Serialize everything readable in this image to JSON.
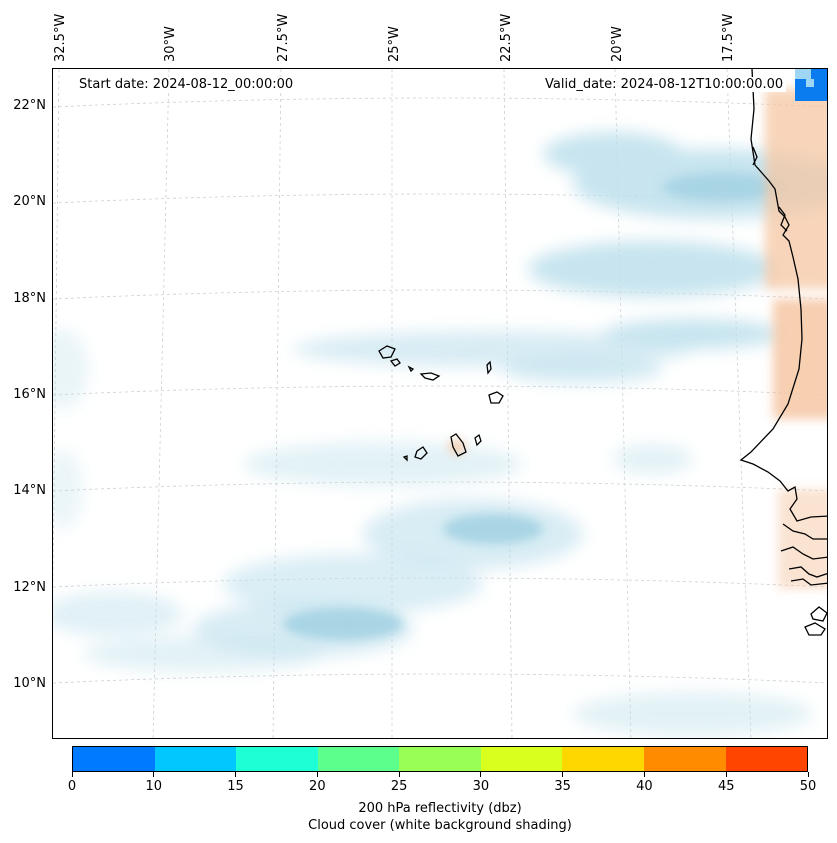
{
  "header": {
    "start_date": "Start date: 2024-08-12_00:00:00",
    "valid_date": "Valid_date: 2024-08-12T10:00:00.00"
  },
  "axes": {
    "longitude_labels": [
      "32.5°W",
      "30°W",
      "27.5°W",
      "25°W",
      "22.5°W",
      "20°W",
      "17.5°W"
    ],
    "latitude_labels": [
      "22°N",
      "20°N",
      "18°N",
      "16°N",
      "14°N",
      "12°N",
      "10°N"
    ]
  },
  "colorbar": {
    "ticks": [
      "0",
      "10",
      "15",
      "20",
      "25",
      "30",
      "35",
      "40",
      "45",
      "50"
    ],
    "colors": [
      "#007bff",
      "#00c8ff",
      "#1fffd6",
      "#5cff8c",
      "#99ff55",
      "#d9ff1f",
      "#ffd700",
      "#ff8c00",
      "#ff4500"
    ],
    "label": "200 hPa reflectivity (dbz)",
    "sublabel": "Cloud cover (white background shading)"
  },
  "map": {
    "land_color": "#000000",
    "cloud_color": "#bde0ec",
    "warm_shading_color": "#f6c7a3",
    "reflectivity_patch_color": "#0a7cf0"
  }
}
